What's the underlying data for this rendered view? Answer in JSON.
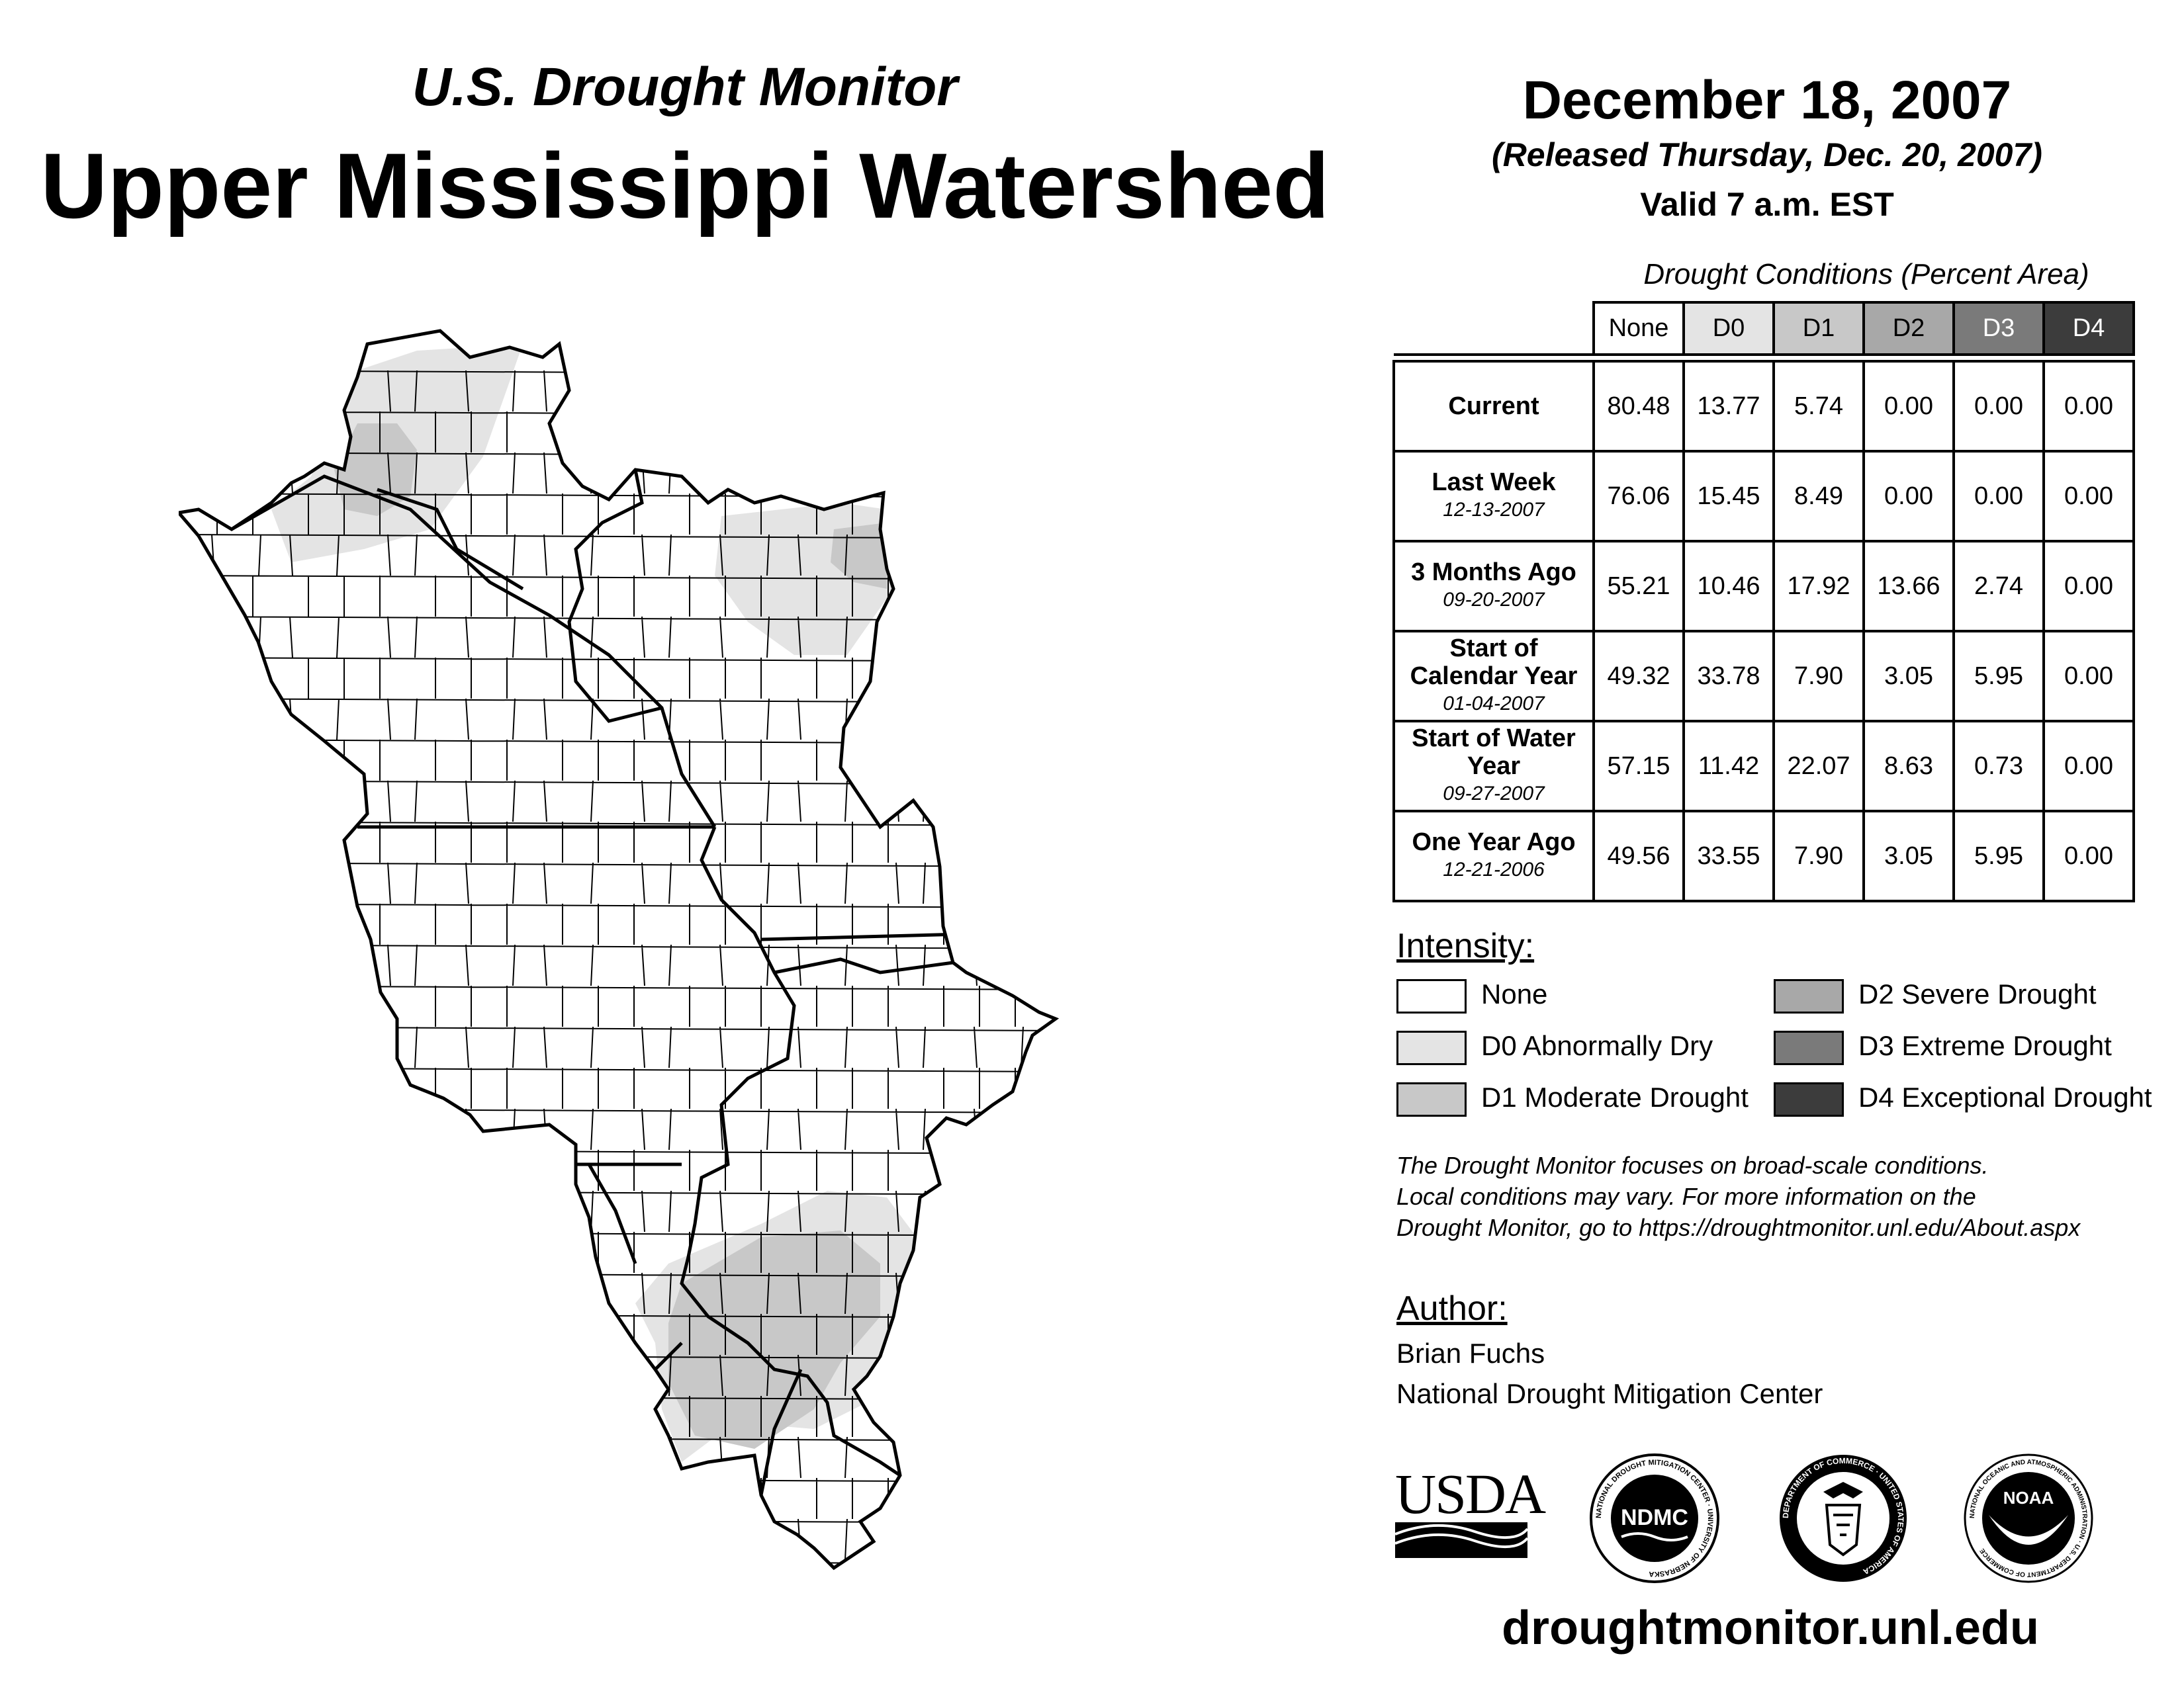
{
  "header": {
    "subtitle": "U.S. Drought Monitor",
    "title": "Upper Mississippi Watershed",
    "date": "December 18, 2007",
    "released": "(Released Thursday, Dec. 20, 2007)",
    "valid": "Valid 7 a.m. EST"
  },
  "table": {
    "caption": "Drought Conditions (Percent Area)",
    "columns": [
      "None",
      "D0",
      "D1",
      "D2",
      "D3",
      "D4"
    ],
    "column_colors": [
      "#ffffff",
      "#e4e4e4",
      "#c8c8c8",
      "#a8a8a8",
      "#7a7a7a",
      "#3c3c3c"
    ],
    "rows": [
      {
        "label": "Current",
        "date": "",
        "values": [
          "80.48",
          "13.77",
          "5.74",
          "0.00",
          "0.00",
          "0.00"
        ]
      },
      {
        "label": "Last Week",
        "date": "12-13-2007",
        "values": [
          "76.06",
          "15.45",
          "8.49",
          "0.00",
          "0.00",
          "0.00"
        ]
      },
      {
        "label": "3 Months Ago",
        "date": "09-20-2007",
        "values": [
          "55.21",
          "10.46",
          "17.92",
          "13.66",
          "2.74",
          "0.00"
        ]
      },
      {
        "label": "Start of Calendar Year",
        "date": "01-04-2007",
        "values": [
          "49.32",
          "33.78",
          "7.90",
          "3.05",
          "5.95",
          "0.00"
        ]
      },
      {
        "label": "Start of Water Year",
        "date": "09-27-2007",
        "values": [
          "57.15",
          "11.42",
          "22.07",
          "8.63",
          "0.73",
          "0.00"
        ]
      },
      {
        "label": "One Year Ago",
        "date": "12-21-2006",
        "values": [
          "49.56",
          "33.55",
          "7.90",
          "3.05",
          "5.95",
          "0.00"
        ]
      }
    ]
  },
  "intensity": {
    "heading": "Intensity:",
    "items": [
      {
        "label": "None",
        "color": "#ffffff"
      },
      {
        "label": "D0 Abnormally Dry",
        "color": "#e4e4e4"
      },
      {
        "label": "D1 Moderate Drought",
        "color": "#c8c8c8"
      },
      {
        "label": "D2 Severe Drought",
        "color": "#a8a8a8"
      },
      {
        "label": "D3 Extreme Drought",
        "color": "#7a7a7a"
      },
      {
        "label": "D4 Exceptional Drought",
        "color": "#3c3c3c"
      }
    ]
  },
  "note": {
    "line1": "The Drought Monitor focuses on broad-scale conditions.",
    "line2": "Local conditions may vary. For more information on the",
    "line3": "Drought Monitor, go to https://droughtmonitor.unl.edu/About.aspx"
  },
  "author": {
    "heading": "Author:",
    "name": "Brian Fuchs",
    "org": "National Drought Mitigation Center"
  },
  "logos": {
    "usda": "USDA",
    "ndmc": "NDMC",
    "ndmc_ring": "NATIONAL DROUGHT MITIGATION CENTER · UNIVERSITY OF NEBRASKA",
    "doc_ring": "DEPARTMENT OF COMMERCE · UNITED STATES OF AMERICA",
    "noaa": "NOAA",
    "noaa_ring": "NATIONAL OCEANIC AND ATMOSPHERIC ADMINISTRATION · U.S. DEPARTMENT OF COMMERCE"
  },
  "footer": {
    "url": "droughtmonitor.unl.edu"
  }
}
